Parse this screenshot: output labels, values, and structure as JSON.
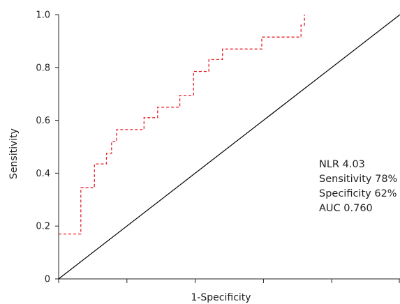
{
  "chart_data": {
    "type": "line",
    "xlabel": "1-Specificity",
    "ylabel": "Sensitivity",
    "xlim": [
      0,
      1
    ],
    "ylim": [
      0,
      1
    ],
    "x_ticks": [
      0,
      0.2,
      0.4,
      0.6,
      0.8,
      1.0
    ],
    "y_ticks": [
      {
        "value": 0,
        "label": "0"
      },
      {
        "value": 0.2,
        "label": "0.2"
      },
      {
        "value": 0.4,
        "label": "0.4"
      },
      {
        "value": 0.6,
        "label": "0.6"
      },
      {
        "value": 0.8,
        "label": "0.8"
      },
      {
        "value": 1.0,
        "label": "1.0"
      }
    ],
    "grid": false,
    "series": [
      {
        "style": "dashed",
        "color": "#e8202a",
        "x": [
          0,
          0.065,
          0.065,
          0.105,
          0.105,
          0.14,
          0.14,
          0.155,
          0.155,
          0.17,
          0.17,
          0.185,
          0.185,
          0.25,
          0.25,
          0.29,
          0.29,
          0.355,
          0.355,
          0.395,
          0.395,
          0.44,
          0.44,
          0.48,
          0.48,
          0.595,
          0.595,
          0.71,
          0.71,
          0.72,
          0.72
        ],
        "y": [
          0.17,
          0.17,
          0.345,
          0.345,
          0.435,
          0.435,
          0.475,
          0.475,
          0.52,
          0.52,
          0.565,
          0.565,
          0.565,
          0.565,
          0.61,
          0.61,
          0.65,
          0.65,
          0.695,
          0.695,
          0.785,
          0.785,
          0.83,
          0.83,
          0.87,
          0.87,
          0.915,
          0.915,
          0.96,
          0.96,
          1.0
        ]
      },
      {
        "style": "solid",
        "color": "#000000",
        "x": [
          0,
          1
        ],
        "y": [
          0,
          1
        ]
      }
    ],
    "annotations": [
      "NLR 4.03",
      "Sensitivity 78%",
      "Specificity 62%",
      "AUC 0.760"
    ]
  }
}
